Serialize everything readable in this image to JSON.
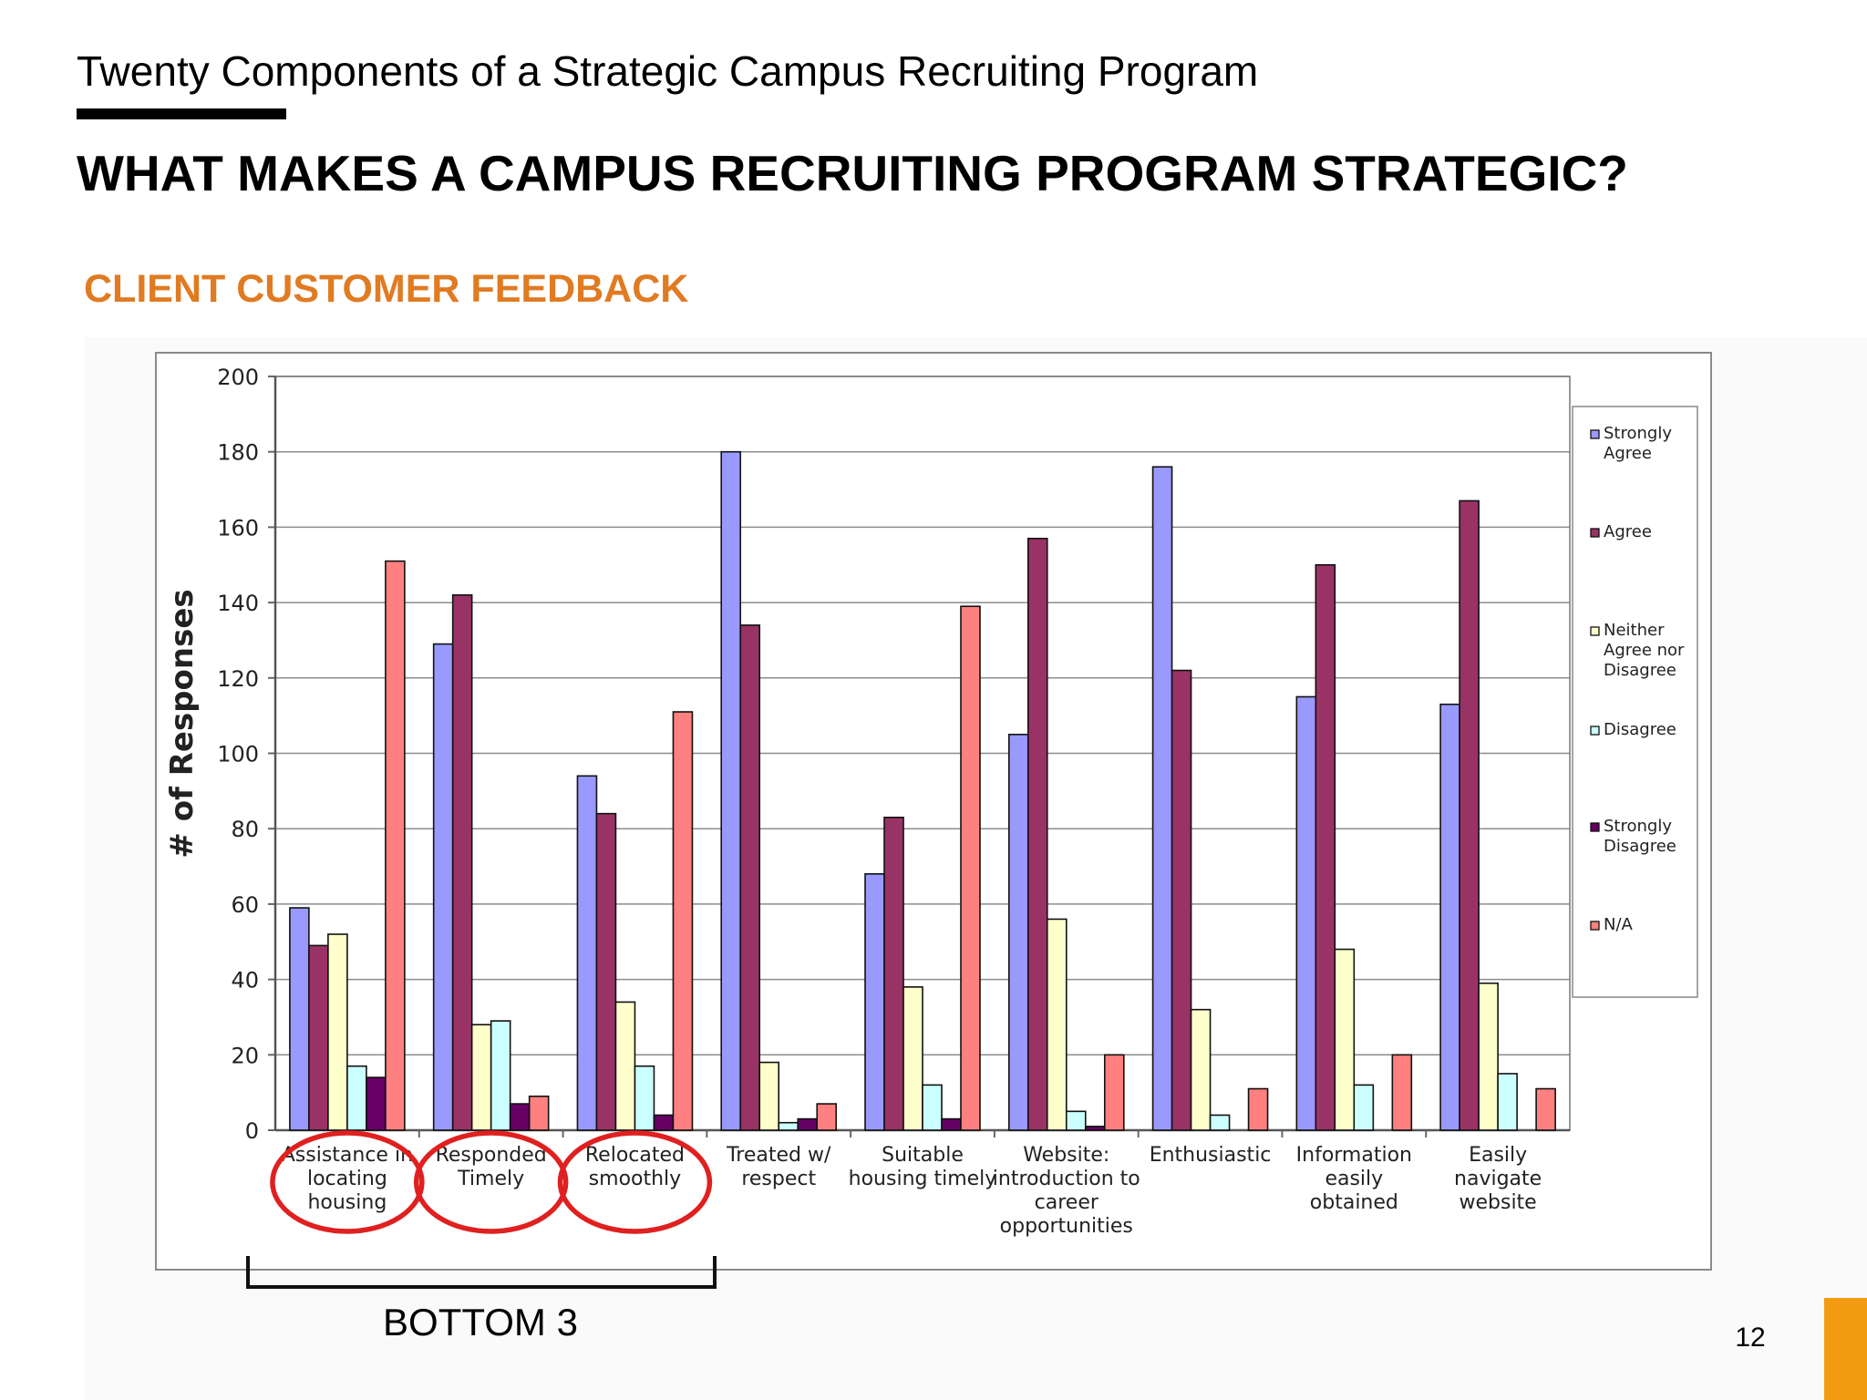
{
  "slide": {
    "subtitle": "Twenty Components of a Strategic Campus Recruiting Program",
    "title": "WHAT MAKES A CAMPUS RECRUITING PROGRAM STRATEGIC?",
    "section_label": "CLIENT CUSTOMER FEEDBACK",
    "page_number": "12",
    "bracket_label": "BOTTOM 3",
    "highlighted_categories": [
      0,
      1,
      2
    ],
    "colors": {
      "section_label": "#e07b22",
      "accent_tab": "#f39c12",
      "highlight_circle": "#e02020"
    }
  },
  "chart_data": {
    "type": "bar",
    "ylabel": "# of Responses",
    "xlabel": "",
    "ylim": [
      0,
      200
    ],
    "yticks": [
      0,
      20,
      40,
      60,
      80,
      100,
      120,
      140,
      160,
      180,
      200
    ],
    "grid": true,
    "legend_position": "right",
    "categories": [
      [
        "Assistance in",
        "locating",
        "housing"
      ],
      [
        "Responded",
        "Timely"
      ],
      [
        "Relocated",
        "smoothly"
      ],
      [
        "Treated w/",
        "respect"
      ],
      [
        "Suitable",
        "housing timely"
      ],
      [
        "Website:",
        "introduction to",
        "career",
        "opportunities"
      ],
      [
        "Enthusiastic"
      ],
      [
        "Information",
        "easily",
        "obtained"
      ],
      [
        "Easily",
        "navigate",
        "website"
      ]
    ],
    "series": [
      {
        "name": "Strongly Agree",
        "legend_lines": [
          "Strongly",
          "Agree"
        ],
        "color": "#9999ff",
        "values": [
          59,
          129,
          94,
          180,
          68,
          105,
          176,
          115,
          113
        ]
      },
      {
        "name": "Agree",
        "legend_lines": [
          "Agree"
        ],
        "color": "#993366",
        "values": [
          49,
          142,
          84,
          134,
          83,
          157,
          122,
          150,
          167
        ]
      },
      {
        "name": "Neither Agree nor Disagree",
        "legend_lines": [
          "Neither",
          "Agree nor",
          "Disagree"
        ],
        "color": "#ffffcc",
        "values": [
          52,
          28,
          34,
          18,
          38,
          56,
          32,
          48,
          39
        ]
      },
      {
        "name": "Disagree",
        "legend_lines": [
          "Disagree"
        ],
        "color": "#ccffff",
        "values": [
          17,
          29,
          17,
          2,
          12,
          5,
          4,
          12,
          15
        ]
      },
      {
        "name": "Strongly Disagree",
        "legend_lines": [
          "Strongly",
          "Disagree"
        ],
        "color": "#660066",
        "values": [
          14,
          7,
          4,
          3,
          3,
          1,
          0,
          0,
          0
        ]
      },
      {
        "name": "N/A",
        "legend_lines": [
          "N/A"
        ],
        "color": "#ff8080",
        "values": [
          151,
          9,
          111,
          7,
          139,
          20,
          11,
          20,
          11
        ]
      }
    ]
  }
}
